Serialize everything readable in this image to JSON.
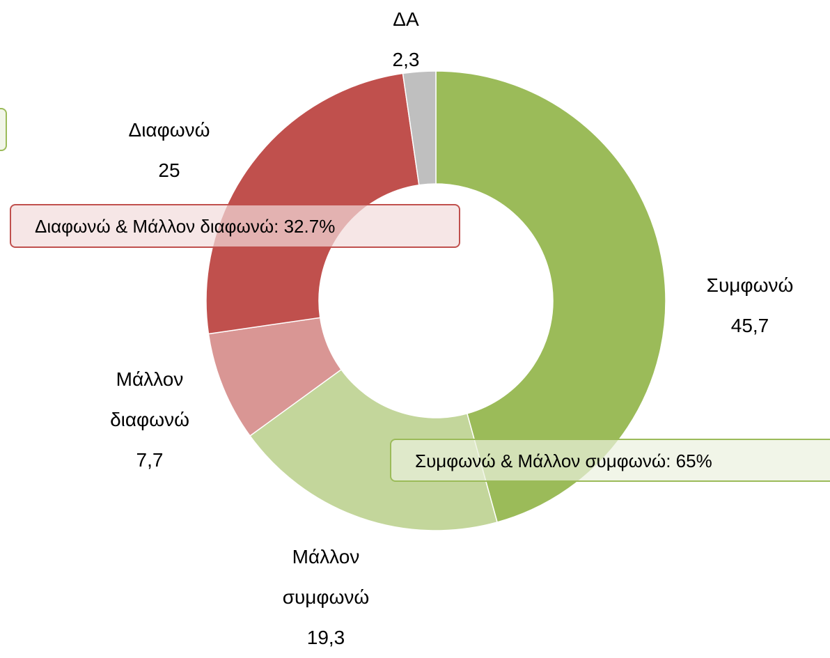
{
  "chart_data": {
    "type": "donut",
    "categories": [
      "Συμφωνώ",
      "Μάλλον συμφωνώ",
      "Μάλλον διαφωνώ",
      "Διαφωνώ",
      "ΔΑ"
    ],
    "values": [
      45.7,
      19.3,
      7.7,
      25,
      2.3
    ],
    "value_labels": [
      "45,7",
      "19,3",
      "7,7",
      "25",
      "2,3"
    ],
    "colors": [
      "#9bbb59",
      "#c3d69b",
      "#d99694",
      "#c0504d",
      "#bfbfbf"
    ],
    "annotations": [
      "Διαφωνώ & Μάλλον διαφωνώ: 32.7%",
      "Συμφωνώ & Μάλλον συμφωνώ: 65%"
    ]
  }
}
